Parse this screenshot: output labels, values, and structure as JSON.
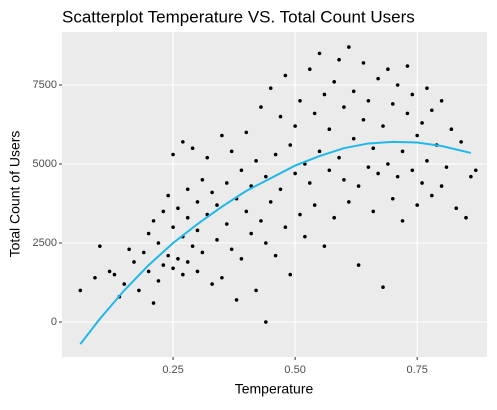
{
  "chart_data": {
    "type": "scatter",
    "title": "Scatterplot Temperature VS. Total Count Users",
    "x_label": "Temperature",
    "y_label": "Total Count of Users",
    "xlim": [
      0.0225,
      0.893
    ],
    "ylim": [
      -1108,
      9177
    ],
    "xticks": [
      0.25,
      {
        "value": 0.5,
        "label": "0.50"
      },
      0.75
    ],
    "yticks": [
      0,
      2500,
      5000,
      7500
    ],
    "grid": true,
    "series": [
      {
        "type": "scatter",
        "color": "#000000",
        "x": [
          0.06,
          0.09,
          0.1,
          0.12,
          0.13,
          0.14,
          0.15,
          0.16,
          0.17,
          0.18,
          0.19,
          0.2,
          0.2,
          0.21,
          0.21,
          0.22,
          0.22,
          0.23,
          0.23,
          0.24,
          0.24,
          0.25,
          0.25,
          0.25,
          0.26,
          0.26,
          0.27,
          0.27,
          0.27,
          0.28,
          0.28,
          0.28,
          0.29,
          0.29,
          0.3,
          0.3,
          0.3,
          0.31,
          0.31,
          0.32,
          0.32,
          0.33,
          0.33,
          0.34,
          0.34,
          0.35,
          0.35,
          0.36,
          0.36,
          0.37,
          0.37,
          0.38,
          0.38,
          0.39,
          0.39,
          0.4,
          0.4,
          0.41,
          0.41,
          0.42,
          0.42,
          0.43,
          0.43,
          0.44,
          0.44,
          0.44,
          0.45,
          0.45,
          0.46,
          0.46,
          0.47,
          0.47,
          0.48,
          0.48,
          0.49,
          0.49,
          0.5,
          0.5,
          0.51,
          0.51,
          0.52,
          0.52,
          0.53,
          0.53,
          0.54,
          0.54,
          0.55,
          0.55,
          0.56,
          0.56,
          0.57,
          0.57,
          0.58,
          0.58,
          0.59,
          0.59,
          0.6,
          0.6,
          0.61,
          0.61,
          0.62,
          0.62,
          0.63,
          0.63,
          0.64,
          0.64,
          0.65,
          0.65,
          0.66,
          0.66,
          0.67,
          0.67,
          0.68,
          0.68,
          0.69,
          0.69,
          0.7,
          0.7,
          0.71,
          0.71,
          0.72,
          0.72,
          0.73,
          0.73,
          0.74,
          0.74,
          0.75,
          0.75,
          0.76,
          0.76,
          0.77,
          0.77,
          0.78,
          0.78,
          0.79,
          0.8,
          0.8,
          0.81,
          0.82,
          0.83,
          0.84,
          0.85,
          0.86,
          0.87
        ],
        "values": [
          1000,
          1400,
          2400,
          1600,
          1500,
          800,
          1200,
          2300,
          1900,
          1000,
          2200,
          1600,
          2800,
          600,
          3200,
          1300,
          2500,
          3500,
          1800,
          2100,
          4000,
          1700,
          3000,
          5300,
          2000,
          3600,
          1500,
          2700,
          5700,
          3300,
          1900,
          4200,
          2400,
          5500,
          1600,
          3800,
          2900,
          4500,
          2200,
          3400,
          5200,
          1200,
          4100,
          2600,
          3700,
          5900,
          1400,
          3100,
          4400,
          2300,
          5400,
          700,
          3900,
          4800,
          2000,
          3500,
          6000,
          2800,
          4300,
          1000,
          5100,
          3200,
          6800,
          0,
          2500,
          4600,
          7400,
          3800,
          5300,
          2100,
          6500,
          4200,
          3000,
          7800,
          5600,
          1500,
          4700,
          6200,
          3400,
          7000,
          5000,
          2700,
          8000,
          4400,
          6600,
          3700,
          8500,
          5400,
          2400,
          7200,
          4800,
          6100,
          3300,
          7600,
          5200,
          8300,
          4500,
          6800,
          8700,
          3800,
          5800,
          7300,
          4300,
          1800,
          6400,
          8200,
          4900,
          7000,
          3500,
          5500,
          7700,
          4700,
          6200,
          1100,
          8000,
          5000,
          3900,
          6900,
          4600,
          7500,
          5400,
          3200,
          6600,
          8100,
          4800,
          7200,
          5900,
          3700,
          6300,
          4400,
          7400,
          5100,
          4000,
          6700,
          5600,
          4300,
          7000,
          4900,
          6100,
          3600,
          5700,
          3300,
          4600,
          4800
        ]
      },
      {
        "type": "line",
        "color": "#1fb8e8",
        "x": [
          0.06,
          0.1,
          0.15,
          0.2,
          0.25,
          0.3,
          0.35,
          0.4,
          0.45,
          0.5,
          0.55,
          0.6,
          0.65,
          0.7,
          0.75,
          0.8,
          0.86
        ],
        "values": [
          -700,
          100,
          1000,
          1800,
          2500,
          3100,
          3650,
          4150,
          4550,
          4950,
          5250,
          5500,
          5650,
          5700,
          5680,
          5570,
          5350
        ]
      }
    ]
  }
}
